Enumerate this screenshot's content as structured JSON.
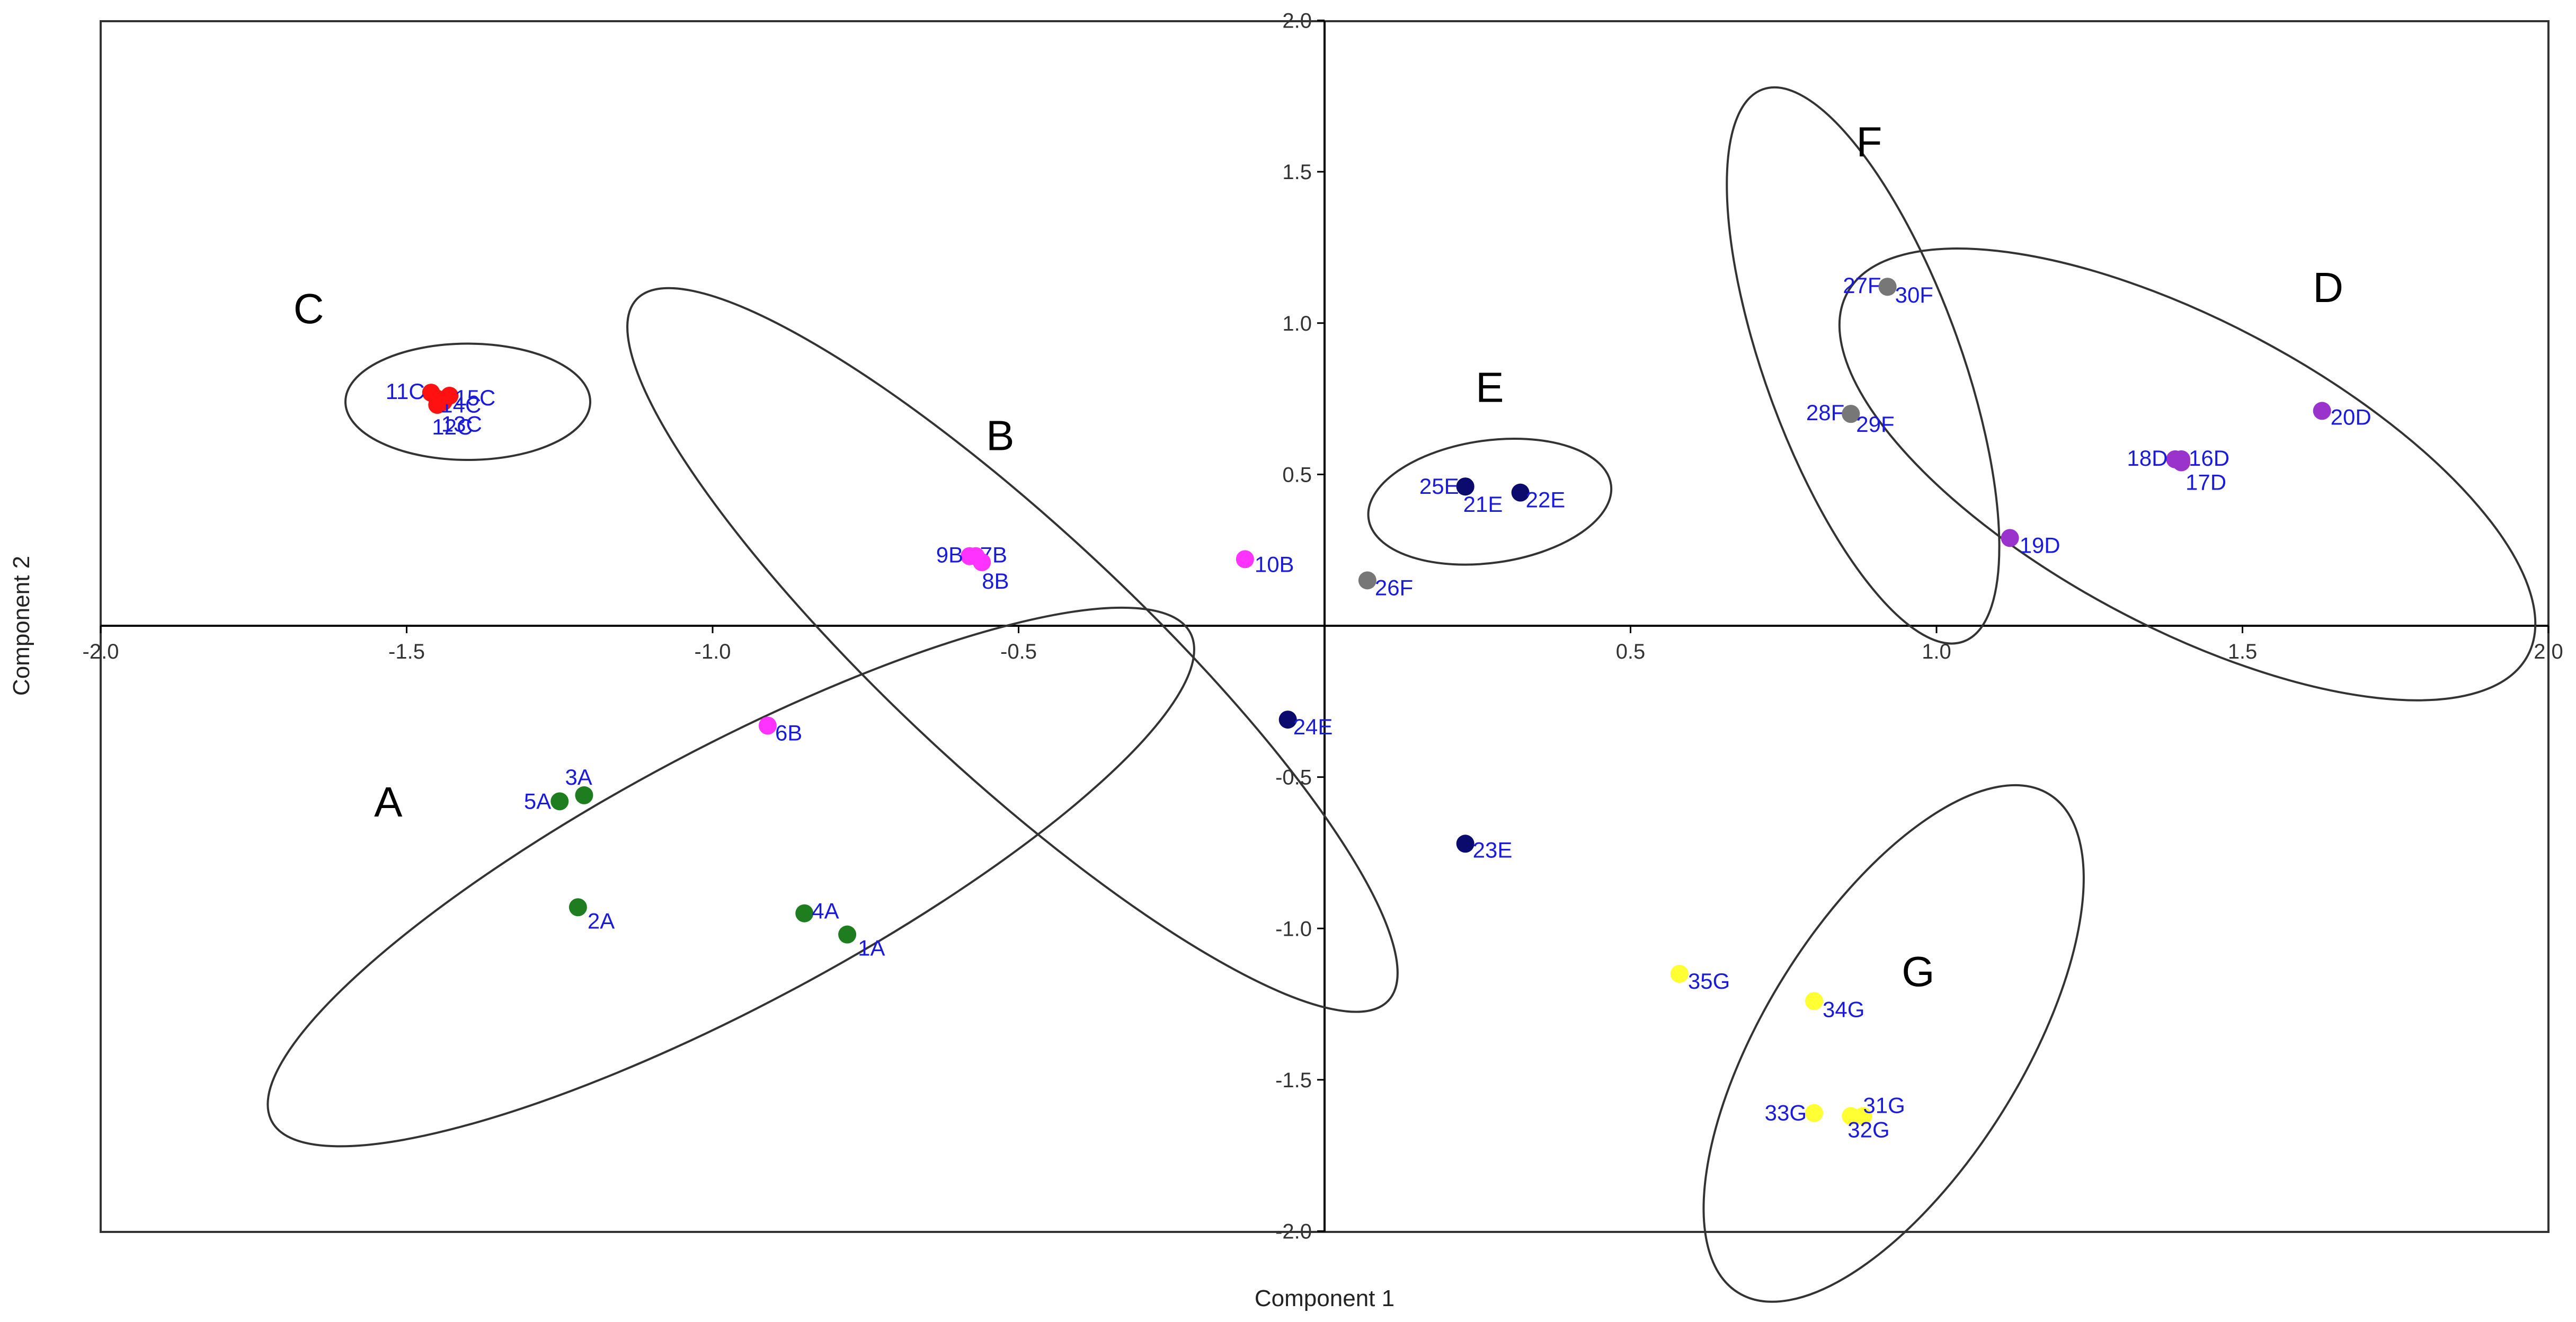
{
  "chart_data": {
    "type": "scatter",
    "title": "",
    "xlabel": "Component 1",
    "ylabel": "Component 2",
    "xlim": [
      -2.0,
      2.0
    ],
    "ylim": [
      -2.0,
      2.0
    ],
    "x_ticks": [
      "-2.0",
      "-1.5",
      "-1.0",
      "-0.5",
      "0.5",
      "1.0",
      "1.5",
      "2.0"
    ],
    "x_tick_values": [
      -2.0,
      -1.5,
      -1.0,
      -0.5,
      0.5,
      1.0,
      1.5,
      2.0
    ],
    "y_ticks": [
      "2.0",
      "1.5",
      "1.0",
      "0.5",
      "-0.5",
      "-1.0",
      "-1.5",
      "-2.0"
    ],
    "y_tick_values": [
      2.0,
      1.5,
      1.0,
      0.5,
      -0.5,
      -1.0,
      -1.5,
      -2.0
    ],
    "grid": false,
    "series": [
      {
        "name": "A",
        "color": "#1e7d1e",
        "points": [
          {
            "label": "1A",
            "x": -0.78,
            "y": -1.02
          },
          {
            "label": "2A",
            "x": -1.22,
            "y": -0.93
          },
          {
            "label": "3A",
            "x": -1.21,
            "y": -0.56
          },
          {
            "label": "4A",
            "x": -0.85,
            "y": -0.95
          },
          {
            "label": "5A",
            "x": -1.25,
            "y": -0.58
          }
        ]
      },
      {
        "name": "B",
        "color": "#ff33ff",
        "points": [
          {
            "label": "6B",
            "x": -0.91,
            "y": -0.33
          },
          {
            "label": "7B",
            "x": -0.57,
            "y": 0.23
          },
          {
            "label": "8B",
            "x": -0.56,
            "y": 0.21
          },
          {
            "label": "9B",
            "x": -0.58,
            "y": 0.23
          },
          {
            "label": "10B",
            "x": -0.13,
            "y": 0.22
          }
        ]
      },
      {
        "name": "C",
        "color": "#ff1111",
        "points": [
          {
            "label": "11C",
            "x": -1.46,
            "y": 0.77
          },
          {
            "label": "12C",
            "x": -1.45,
            "y": 0.73
          },
          {
            "label": "13C",
            "x": -1.44,
            "y": 0.74
          },
          {
            "label": "14C",
            "x": -1.45,
            "y": 0.75
          },
          {
            "label": "15C",
            "x": -1.43,
            "y": 0.76
          }
        ]
      },
      {
        "name": "D",
        "color": "#9933cc",
        "points": [
          {
            "label": "16D",
            "x": 1.4,
            "y": 0.55
          },
          {
            "label": "17D",
            "x": 1.4,
            "y": 0.54
          },
          {
            "label": "18D",
            "x": 1.39,
            "y": 0.55
          },
          {
            "label": "19D",
            "x": 1.12,
            "y": 0.29
          },
          {
            "label": "20D",
            "x": 1.63,
            "y": 0.71
          }
        ]
      },
      {
        "name": "E",
        "color": "#0b0b6e",
        "points": [
          {
            "label": "21E",
            "x": 0.23,
            "y": 0.46
          },
          {
            "label": "22E",
            "x": 0.32,
            "y": 0.44
          },
          {
            "label": "23E",
            "x": 0.23,
            "y": -0.72
          },
          {
            "label": "24E",
            "x": -0.06,
            "y": -0.31
          },
          {
            "label": "25E",
            "x": 0.23,
            "y": 0.46
          }
        ]
      },
      {
        "name": "F",
        "color": "#777777",
        "points": [
          {
            "label": "26F",
            "x": 0.07,
            "y": 0.15
          },
          {
            "label": "27F",
            "x": 0.92,
            "y": 1.12
          },
          {
            "label": "28F",
            "x": 0.86,
            "y": 0.7
          },
          {
            "label": "29F",
            "x": 0.86,
            "y": 0.7
          },
          {
            "label": "30F",
            "x": 0.92,
            "y": 1.12
          }
        ]
      },
      {
        "name": "G",
        "color": "#ffff33",
        "points": [
          {
            "label": "31G",
            "x": 0.88,
            "y": -1.62
          },
          {
            "label": "32G",
            "x": 0.86,
            "y": -1.62
          },
          {
            "label": "33G",
            "x": 0.8,
            "y": -1.61
          },
          {
            "label": "34G",
            "x": 0.8,
            "y": -1.24
          },
          {
            "label": "35G",
            "x": 0.58,
            "y": -1.15
          }
        ]
      }
    ],
    "groups": [
      {
        "name": "A",
        "label": "A",
        "cx": -0.97,
        "cy": -0.83,
        "rx": 0.85,
        "ry": 0.21,
        "angle_deg": -28,
        "label_x": -1.53,
        "label_y": -0.63
      },
      {
        "name": "B",
        "label": "B",
        "cx": -0.51,
        "cy": -0.08,
        "rx": 0.84,
        "ry": 0.2,
        "angle_deg": 43,
        "label_x": -0.53,
        "label_y": 0.58
      },
      {
        "name": "C",
        "label": "C",
        "cx": -1.4,
        "cy": 0.74,
        "rx": 0.2,
        "ry": 0.095,
        "angle_deg": 0,
        "label_x": -1.66,
        "label_y": 1.0
      },
      {
        "name": "D",
        "label": "D",
        "cx": 1.41,
        "cy": 0.5,
        "rx": 0.63,
        "ry": 0.25,
        "angle_deg": 28,
        "label_x": 1.64,
        "label_y": 1.07
      },
      {
        "name": "E",
        "label": "E",
        "cx": 0.27,
        "cy": 0.41,
        "rx": 0.2,
        "ry": 0.1,
        "angle_deg": -8,
        "label_x": 0.27,
        "label_y": 0.74
      },
      {
        "name": "F",
        "label": "F",
        "cx": 0.88,
        "cy": 0.86,
        "rx": 0.48,
        "ry": 0.16,
        "angle_deg": 70,
        "label_x": 0.89,
        "label_y": 1.55
      },
      {
        "name": "G",
        "label": "G",
        "cx": 0.93,
        "cy": -1.38,
        "rx": 0.48,
        "ry": 0.21,
        "angle_deg": -58,
        "label_x": 0.97,
        "label_y": -1.19
      }
    ]
  }
}
